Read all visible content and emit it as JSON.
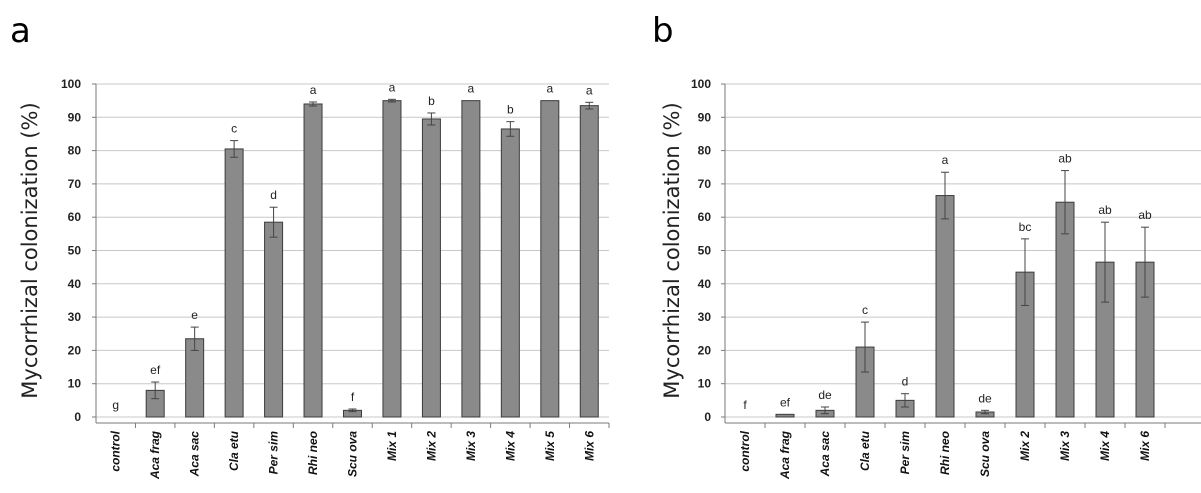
{
  "chart_data": [
    {
      "type": "bar",
      "panel_label": "a",
      "ylabel": "Mycorrhizal colonization (%)",
      "ylim": [
        0,
        100
      ],
      "yticks": [
        0,
        10,
        20,
        30,
        40,
        50,
        60,
        70,
        80,
        90,
        100
      ],
      "grid": true,
      "categories": [
        "control",
        "Aca frag",
        "Aca sac",
        "Cla etu",
        "Per sim",
        "Rhi neo",
        "Scu ova",
        "Mix 1",
        "Mix 2",
        "Mix 3",
        "Mix 4",
        "Mix 5",
        "Mix 6"
      ],
      "values": [
        0,
        8,
        23.5,
        80.5,
        58.5,
        94,
        2,
        95,
        89.5,
        95,
        86.5,
        95,
        93.5
      ],
      "errors": [
        0,
        2.5,
        3.5,
        2.5,
        4.5,
        0.6,
        0.4,
        0.4,
        1.8,
        0,
        2.2,
        0,
        1
      ],
      "significance_labels": [
        "g",
        "ef",
        "e",
        "c",
        "d",
        "a",
        "f",
        "a",
        "b",
        "a",
        "b",
        "a",
        "a"
      ]
    },
    {
      "type": "bar",
      "panel_label": "b",
      "ylabel": "Mycorrhizal colonization (%)",
      "ylim": [
        0,
        100
      ],
      "yticks": [
        0,
        10,
        20,
        30,
        40,
        50,
        60,
        70,
        80,
        90,
        100
      ],
      "grid": true,
      "categories": [
        "control",
        "Aca frag",
        "Aca sac",
        "Cla etu",
        "Per sim",
        "Rhi neo",
        "Scu ova",
        "Mix 2",
        "Mix 3",
        "Mix 4",
        "Mix 6"
      ],
      "values": [
        0,
        0.8,
        2,
        21,
        5,
        66.5,
        1.5,
        43.5,
        64.5,
        46.5,
        46.5
      ],
      "errors": [
        0,
        0,
        1,
        7.5,
        2,
        7,
        0.5,
        10,
        9.5,
        12,
        10.5
      ],
      "significance_labels": [
        "f",
        "ef",
        "de",
        "c",
        "d",
        "a",
        "de",
        "bc",
        "ab",
        "ab",
        "ab"
      ]
    }
  ]
}
